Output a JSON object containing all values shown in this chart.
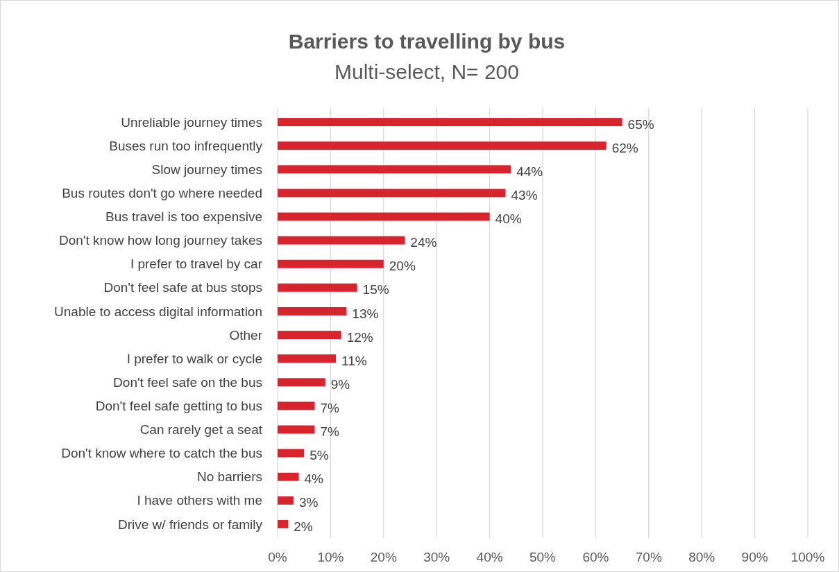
{
  "chart_data": {
    "type": "bar",
    "orientation": "horizontal",
    "title": "Barriers to travelling by bus",
    "subtitle": "Multi-select, N= 200",
    "categories": [
      "Unreliable journey times",
      "Buses run too infrequently",
      "Slow journey times",
      "Bus routes don't go where needed",
      "Bus travel is too expensive",
      "Don't know how long journey takes",
      "I prefer to travel by car",
      "Don't feel safe at bus stops",
      "Unable to access digital information",
      "Other",
      "I prefer to walk or cycle",
      "Don't feel safe on the bus",
      "Don't feel safe getting to bus",
      "Can rarely get a seat",
      "Don't know where to catch the bus",
      "No barriers",
      "I have others with me",
      "Drive w/ friends or family"
    ],
    "values": [
      65,
      62,
      44,
      43,
      40,
      24,
      20,
      15,
      13,
      12,
      11,
      9,
      7,
      7,
      5,
      4,
      3,
      2
    ],
    "value_labels": [
      "65%",
      "62%",
      "44%",
      "43%",
      "40%",
      "24%",
      "20%",
      "15%",
      "13%",
      "12%",
      "11%",
      "9%",
      "7%",
      "7%",
      "5%",
      "4%",
      "3%",
      "2%"
    ],
    "color": "#d7242d",
    "xlim": [
      0,
      100
    ],
    "xticks": [
      {
        "value": 0,
        "label": "0%"
      },
      {
        "value": 10,
        "label": "10%"
      },
      {
        "value": 20,
        "label": "20%"
      },
      {
        "value": 30,
        "label": "30%"
      },
      {
        "value": 40,
        "label": "40%"
      },
      {
        "value": 50,
        "label": "50%"
      },
      {
        "value": 60,
        "label": "60%"
      },
      {
        "value": 70,
        "label": "70%"
      },
      {
        "value": 80,
        "label": "80%"
      },
      {
        "value": 90,
        "label": "90%"
      },
      {
        "value": 100,
        "label": "100%"
      }
    ],
    "grid": "x"
  }
}
